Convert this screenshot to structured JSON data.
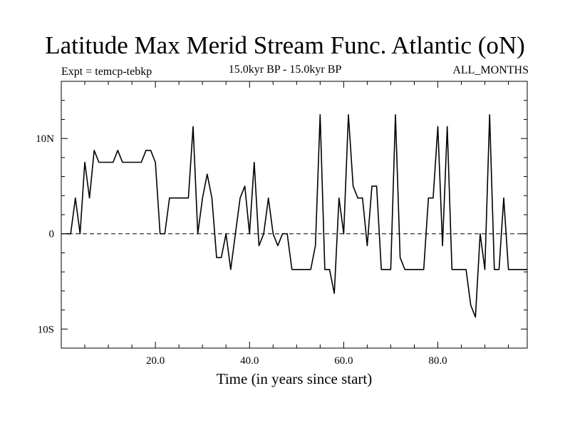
{
  "chart_data": {
    "type": "line",
    "title": "Latitude Max Merid Stream Func. Atlantic (oN)",
    "subtitle_left": "Expt = temcp-tebkp",
    "subtitle_center": "15.0kyr BP - 15.0kyr BP",
    "subtitle_right": "ALL_MONTHS",
    "xlabel": "Time (in years since start)",
    "ylabel": "",
    "xlim": [
      0,
      99
    ],
    "ylim": [
      -12,
      16
    ],
    "x_ticks": [
      {
        "value": 20,
        "label": "20.0"
      },
      {
        "value": 40,
        "label": "40.0"
      },
      {
        "value": 60,
        "label": "60.0"
      },
      {
        "value": 80,
        "label": "80.0"
      }
    ],
    "y_ticks": [
      {
        "value": 10,
        "label": "10N"
      },
      {
        "value": 0,
        "label": "0"
      },
      {
        "value": -10,
        "label": "10S"
      }
    ],
    "zero_line": {
      "value": 0,
      "style": "dashed"
    },
    "grid": false,
    "series": [
      {
        "color": "#000000",
        "x": [
          1,
          2,
          3,
          4,
          5,
          6,
          7,
          8,
          9,
          10,
          11,
          12,
          13,
          14,
          15,
          16,
          17,
          18,
          19,
          20,
          21,
          22,
          23,
          24,
          25,
          26,
          27,
          28,
          29,
          30,
          31,
          32,
          33,
          34,
          35,
          36,
          37,
          38,
          39,
          40,
          41,
          42,
          43,
          44,
          45,
          46,
          47,
          48,
          49,
          50,
          51,
          52,
          53,
          54,
          55,
          56,
          57,
          58,
          59,
          60,
          61,
          62,
          63,
          64,
          65,
          66,
          67,
          68,
          69,
          70,
          71,
          72,
          73,
          74,
          75,
          76,
          77,
          78,
          79,
          80,
          81,
          82,
          83,
          84,
          85,
          86,
          87,
          88,
          89,
          90,
          91,
          92,
          93,
          94,
          95,
          96,
          97,
          98,
          99
        ],
        "y": [
          0,
          0,
          3.75,
          0,
          7.5,
          3.75,
          8.75,
          7.5,
          7.5,
          7.5,
          7.5,
          8.75,
          7.5,
          7.5,
          7.5,
          7.5,
          7.5,
          8.75,
          8.75,
          7.5,
          0,
          0,
          3.75,
          3.75,
          3.75,
          3.75,
          3.75,
          11.25,
          0,
          3.75,
          6.25,
          3.75,
          -2.5,
          -2.5,
          0,
          -3.75,
          0,
          3.75,
          5,
          0,
          7.5,
          -1.25,
          0,
          3.75,
          0,
          -1.25,
          0,
          0,
          -3.75,
          -3.75,
          -3.75,
          -3.75,
          -3.75,
          -1.25,
          12.5,
          -3.75,
          -3.75,
          -6.25,
          3.75,
          0,
          12.5,
          5,
          3.75,
          3.75,
          -1.25,
          5,
          5,
          -3.75,
          -3.75,
          -3.75,
          12.5,
          -2.5,
          -3.75,
          -3.75,
          -3.75,
          -3.75,
          -3.75,
          3.75,
          3.75,
          11.25,
          -1.25,
          11.25,
          -3.75,
          -3.75,
          -3.75,
          -3.75,
          -7.5,
          -8.75,
          0,
          -3.75,
          12.5,
          -3.75,
          -3.75,
          3.75,
          -3.75,
          -3.75,
          -3.75,
          -3.75,
          -3.75
        ]
      }
    ]
  }
}
